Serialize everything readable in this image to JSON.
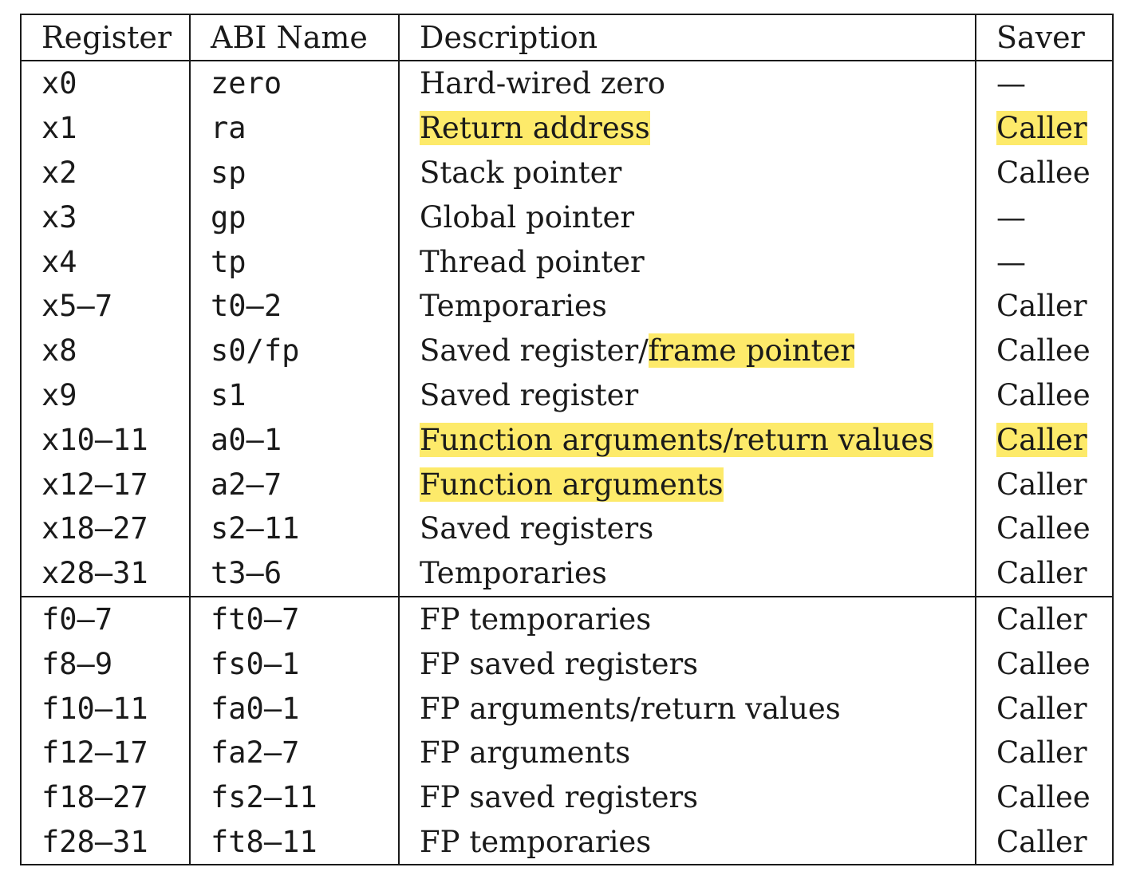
{
  "table": {
    "headers": [
      "Register",
      "ABI Name",
      "Description",
      "Saver"
    ],
    "highlight_color": "#fdea6a",
    "rows": [
      {
        "register": "x0",
        "abi": "zero",
        "desc_pre": "Hard-wired zero",
        "desc_hl": "",
        "desc_hl_full": false,
        "saver": "—",
        "saver_hl": false,
        "group_start": false
      },
      {
        "register": "x1",
        "abi": "ra",
        "desc_pre": "",
        "desc_hl": "Return address",
        "desc_hl_full": true,
        "saver": "Caller",
        "saver_hl": true,
        "group_start": false
      },
      {
        "register": "x2",
        "abi": "sp",
        "desc_pre": "Stack pointer",
        "desc_hl": "",
        "desc_hl_full": false,
        "saver": "Callee",
        "saver_hl": false,
        "group_start": false
      },
      {
        "register": "x3",
        "abi": "gp",
        "desc_pre": "Global pointer",
        "desc_hl": "",
        "desc_hl_full": false,
        "saver": "—",
        "saver_hl": false,
        "group_start": false
      },
      {
        "register": "x4",
        "abi": "tp",
        "desc_pre": "Thread pointer",
        "desc_hl": "",
        "desc_hl_full": false,
        "saver": "—",
        "saver_hl": false,
        "group_start": false
      },
      {
        "register": "x5–7",
        "abi": "t0–2",
        "desc_pre": "Temporaries",
        "desc_hl": "",
        "desc_hl_full": false,
        "saver": "Caller",
        "saver_hl": false,
        "group_start": false
      },
      {
        "register": "x8",
        "abi": "s0/fp",
        "desc_pre": "Saved register/",
        "desc_hl": "frame pointer",
        "desc_hl_full": false,
        "saver": "Callee",
        "saver_hl": false,
        "group_start": false
      },
      {
        "register": "x9",
        "abi": "s1",
        "desc_pre": "Saved register",
        "desc_hl": "",
        "desc_hl_full": false,
        "saver": "Callee",
        "saver_hl": false,
        "group_start": false
      },
      {
        "register": "x10–11",
        "abi": "a0–1",
        "desc_pre": "",
        "desc_hl": "Function arguments/return values",
        "desc_hl_full": true,
        "saver": "Caller",
        "saver_hl": true,
        "group_start": false
      },
      {
        "register": "x12–17",
        "abi": "a2–7",
        "desc_pre": "",
        "desc_hl": "Function arguments",
        "desc_hl_full": true,
        "saver": "Caller",
        "saver_hl": false,
        "group_start": false
      },
      {
        "register": "x18–27",
        "abi": "s2–11",
        "desc_pre": "Saved registers",
        "desc_hl": "",
        "desc_hl_full": false,
        "saver": "Callee",
        "saver_hl": false,
        "group_start": false
      },
      {
        "register": "x28–31",
        "abi": "t3–6",
        "desc_pre": "Temporaries",
        "desc_hl": "",
        "desc_hl_full": false,
        "saver": "Caller",
        "saver_hl": false,
        "group_start": false
      },
      {
        "register": "f0–7",
        "abi": "ft0–7",
        "desc_pre": "FP temporaries",
        "desc_hl": "",
        "desc_hl_full": false,
        "saver": "Caller",
        "saver_hl": false,
        "group_start": true
      },
      {
        "register": "f8–9",
        "abi": "fs0–1",
        "desc_pre": "FP saved registers",
        "desc_hl": "",
        "desc_hl_full": false,
        "saver": "Callee",
        "saver_hl": false,
        "group_start": false
      },
      {
        "register": "f10–11",
        "abi": "fa0–1",
        "desc_pre": "FP arguments/return values",
        "desc_hl": "",
        "desc_hl_full": false,
        "saver": "Caller",
        "saver_hl": false,
        "group_start": false
      },
      {
        "register": "f12–17",
        "abi": "fa2–7",
        "desc_pre": "FP arguments",
        "desc_hl": "",
        "desc_hl_full": false,
        "saver": "Caller",
        "saver_hl": false,
        "group_start": false
      },
      {
        "register": "f18–27",
        "abi": "fs2–11",
        "desc_pre": "FP saved registers",
        "desc_hl": "",
        "desc_hl_full": false,
        "saver": "Callee",
        "saver_hl": false,
        "group_start": false
      },
      {
        "register": "f28–31",
        "abi": "ft8–11",
        "desc_pre": "FP temporaries",
        "desc_hl": "",
        "desc_hl_full": false,
        "saver": "Caller",
        "saver_hl": false,
        "group_start": false
      }
    ]
  }
}
